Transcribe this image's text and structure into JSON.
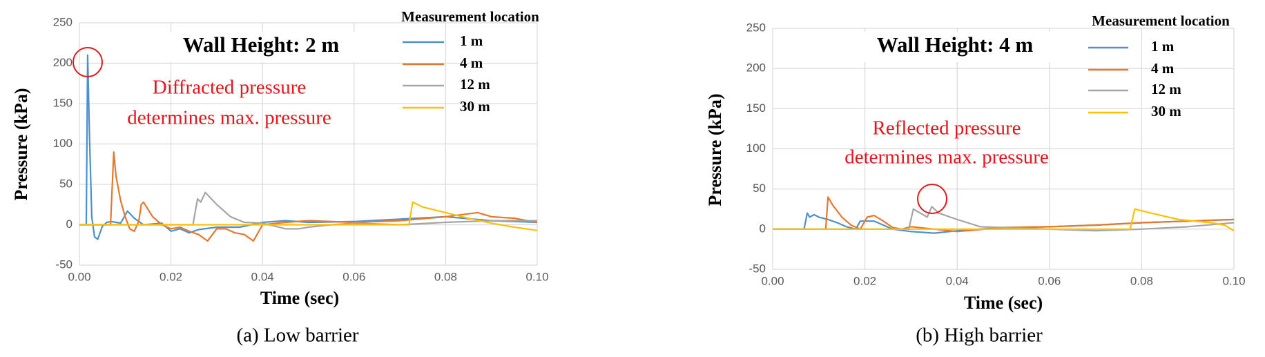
{
  "chart_data": [
    {
      "type": "line",
      "title": "Wall Height: 2 m",
      "annotation": [
        "Diffracted pressure",
        "determines max. pressure"
      ],
      "caption": "(a) Low barrier",
      "xlabel": "Time (sec)",
      "ylabel": "Pressure (kPa)",
      "legend_title": "Measurement location",
      "xlim": [
        0,
        0.1
      ],
      "ylim": [
        -50,
        250
      ],
      "xticks": [
        {
          "value": 0,
          "label": "0.00"
        },
        {
          "value": 0.02,
          "label": "0.02"
        },
        {
          "value": 0.04,
          "label": "0.04"
        },
        {
          "value": 0.06,
          "label": "0.06"
        },
        {
          "value": 0.08,
          "label": "0.08"
        },
        {
          "value": 0.1,
          "label": "0.10"
        }
      ],
      "yticks": [
        -50,
        0,
        50,
        100,
        150,
        200,
        250
      ],
      "grid": true,
      "series": [
        {
          "name": "1 m",
          "color": "#4a90d0",
          "x": [
            0,
            0.0015,
            0.0018,
            0.0022,
            0.0027,
            0.0033,
            0.004,
            0.005,
            0.006,
            0.007,
            0.008,
            0.009,
            0.0105,
            0.012,
            0.014,
            0.016,
            0.018,
            0.02,
            0.022,
            0.024,
            0.026,
            0.03,
            0.035,
            0.04,
            0.045,
            0.05,
            0.06,
            0.07,
            0.08,
            0.09,
            0.1
          ],
          "values": [
            0,
            0,
            210,
            110,
            10,
            -15,
            -18,
            -2,
            3,
            4,
            3,
            2,
            17,
            8,
            0,
            1,
            2,
            -8,
            -5,
            -10,
            -6,
            -3,
            -3,
            3,
            5,
            3,
            4,
            7,
            10,
            5,
            3
          ]
        },
        {
          "name": "4 m",
          "color": "#e8772e",
          "x": [
            0,
            0.0068,
            0.0075,
            0.008,
            0.009,
            0.01,
            0.011,
            0.012,
            0.013,
            0.0135,
            0.014,
            0.016,
            0.018,
            0.02,
            0.022,
            0.024,
            0.026,
            0.028,
            0.03,
            0.032,
            0.034,
            0.036,
            0.038,
            0.04,
            0.045,
            0.05,
            0.06,
            0.07,
            0.08,
            0.087,
            0.09,
            0.095,
            0.1
          ],
          "values": [
            0,
            0,
            90,
            60,
            30,
            10,
            -5,
            -8,
            5,
            25,
            28,
            10,
            0,
            -5,
            -3,
            -8,
            -12,
            -20,
            -5,
            -5,
            -10,
            -12,
            -20,
            0,
            3,
            5,
            3,
            5,
            10,
            15,
            10,
            8,
            3
          ]
        },
        {
          "name": "12 m",
          "color": "#a5a5a5",
          "x": [
            0,
            0.0248,
            0.0258,
            0.0265,
            0.0275,
            0.03,
            0.033,
            0.036,
            0.04,
            0.045,
            0.048,
            0.05,
            0.055,
            0.06,
            0.07,
            0.08,
            0.09,
            0.1
          ],
          "values": [
            0,
            0,
            32,
            28,
            40,
            25,
            10,
            3,
            2,
            -5,
            -5,
            -3,
            0,
            2,
            0,
            3,
            5,
            5
          ]
        },
        {
          "name": "30 m",
          "color": "#ffc000",
          "x": [
            0,
            0.072,
            0.0728,
            0.075,
            0.08,
            0.085,
            0.09,
            0.095,
            0.1
          ],
          "values": [
            0,
            0,
            28,
            22,
            15,
            8,
            2,
            -3,
            -7
          ]
        }
      ]
    },
    {
      "type": "line",
      "title": "Wall Height: 4 m",
      "annotation": [
        "Reflected pressure",
        "determines max. pressure"
      ],
      "caption": "(b) High barrier",
      "xlabel": "Time (sec)",
      "ylabel": "Pressure (kPa)",
      "legend_title": "Measurement location",
      "xlim": [
        0,
        0.1
      ],
      "ylim": [
        -50,
        250
      ],
      "xticks": [
        {
          "value": 0,
          "label": "0.00"
        },
        {
          "value": 0.02,
          "label": "0.02"
        },
        {
          "value": 0.04,
          "label": "0.04"
        },
        {
          "value": 0.06,
          "label": "0.06"
        },
        {
          "value": 0.08,
          "label": "0.08"
        },
        {
          "value": 0.1,
          "label": "0.10"
        }
      ],
      "yticks": [
        -50,
        0,
        50,
        100,
        150,
        200,
        250
      ],
      "grid": true,
      "series": [
        {
          "name": "1 m",
          "color": "#4a90d0",
          "x": [
            0,
            0.0068,
            0.0075,
            0.008,
            0.009,
            0.01,
            0.012,
            0.014,
            0.016,
            0.018,
            0.019,
            0.02,
            0.022,
            0.024,
            0.026,
            0.03,
            0.035,
            0.04,
            0.05,
            0.06,
            0.07,
            0.08,
            0.09,
            0.1
          ],
          "values": [
            0,
            0,
            20,
            15,
            18,
            15,
            12,
            8,
            3,
            0,
            10,
            10,
            10,
            5,
            0,
            -3,
            -5,
            -2,
            2,
            3,
            5,
            8,
            10,
            12
          ]
        },
        {
          "name": "4 m",
          "color": "#e8772e",
          "x": [
            0,
            0.0115,
            0.012,
            0.013,
            0.015,
            0.017,
            0.019,
            0.0205,
            0.022,
            0.024,
            0.026,
            0.028,
            0.03,
            0.035,
            0.04,
            0.05,
            0.06,
            0.07,
            0.08,
            0.09,
            0.1
          ],
          "values": [
            0,
            0,
            40,
            30,
            15,
            5,
            0,
            15,
            17,
            10,
            2,
            0,
            3,
            0,
            -3,
            2,
            3,
            5,
            8,
            10,
            12
          ]
        },
        {
          "name": "12 m",
          "color": "#a5a5a5",
          "x": [
            0,
            0.0295,
            0.0305,
            0.032,
            0.0335,
            0.0345,
            0.036,
            0.04,
            0.045,
            0.05,
            0.06,
            0.07,
            0.08,
            0.09,
            0.1
          ],
          "values": [
            0,
            0,
            25,
            20,
            15,
            28,
            20,
            12,
            3,
            2,
            0,
            -2,
            0,
            3,
            8
          ]
        },
        {
          "name": "30 m",
          "color": "#ffc000",
          "x": [
            0,
            0.0775,
            0.0785,
            0.082,
            0.088,
            0.095,
            0.098,
            0.1
          ],
          "values": [
            0,
            0,
            25,
            20,
            12,
            8,
            5,
            -2
          ]
        }
      ]
    }
  ]
}
